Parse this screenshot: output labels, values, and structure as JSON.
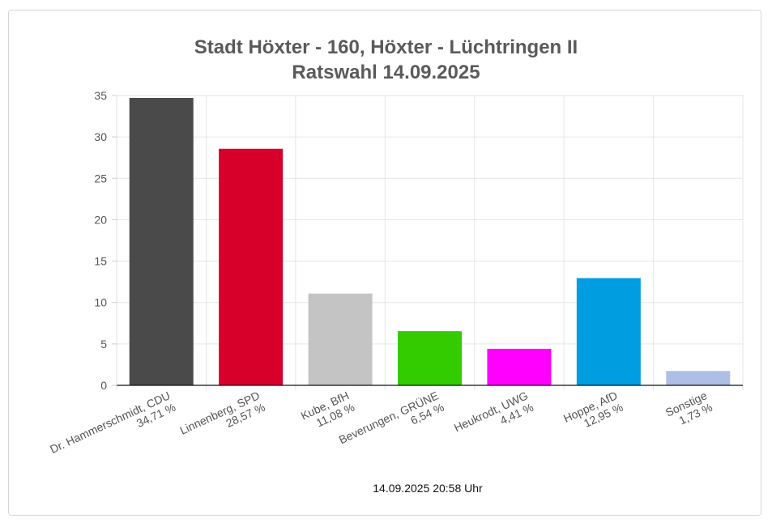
{
  "chart_data": {
    "type": "bar",
    "title": [
      "Stadt Höxter - 160, Höxter - Lüchtringen II",
      "Ratswahl 14.09.2025"
    ],
    "categories": [
      "Dr. Hammerschmidt, CDU",
      "Linnenberg, SPD",
      "Kube, BfH",
      "Beverungen, GRÜNE",
      "Heukrodt, UWG",
      "Hoppe, AfD",
      "Sonstige"
    ],
    "values": [
      34.71,
      28.57,
      11.08,
      6.54,
      4.41,
      12.95,
      1.73
    ],
    "value_labels": [
      "34,71 %",
      "28,57 %",
      "11,08 %",
      "6,54 %",
      "4,41 %",
      "12,95 %",
      "1,73 %"
    ],
    "colors": [
      "#4a4a4a",
      "#d7002a",
      "#c4c4c4",
      "#33cc00",
      "#ff00ff",
      "#009de0",
      "#aebfe6"
    ],
    "ylim": [
      0,
      35
    ],
    "yticks": [
      0,
      5,
      10,
      15,
      20,
      25,
      30,
      35
    ],
    "grid": true,
    "xlabel": "",
    "ylabel": ""
  },
  "header": {
    "title_line1": "Stadt Höxter - 160, Höxter - Lüchtringen II",
    "title_line2": "Ratswahl 14.09.2025"
  },
  "footer": {
    "timestamp": "14.09.2025 20:58 Uhr"
  }
}
